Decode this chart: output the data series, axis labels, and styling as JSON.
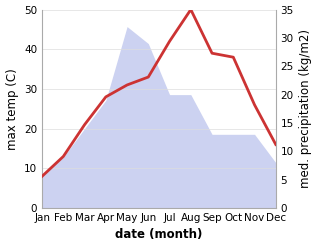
{
  "months": [
    "Jan",
    "Feb",
    "Mar",
    "Apr",
    "May",
    "Jun",
    "Jul",
    "Aug",
    "Sep",
    "Oct",
    "Nov",
    "Dec"
  ],
  "temp_max": [
    8,
    13,
    21,
    28,
    31,
    33,
    42,
    50,
    39,
    38,
    26,
    16
  ],
  "precipitation": [
    6,
    9,
    14,
    19,
    32,
    29,
    20,
    20,
    13,
    13,
    13,
    8
  ],
  "temp_ylim": [
    0,
    50
  ],
  "precip_ylim": [
    0,
    35
  ],
  "temp_color": "#cc3333",
  "precip_fill_color": "#aab4e8",
  "precip_fill_alpha": 0.6,
  "xlabel": "date (month)",
  "ylabel_left": "max temp (C)",
  "ylabel_right": "med. precipitation (kg/m2)",
  "bg_color": "#ffffff",
  "label_fontsize": 7.5,
  "axis_label_fontsize": 8.5,
  "temp_linewidth": 2.0
}
